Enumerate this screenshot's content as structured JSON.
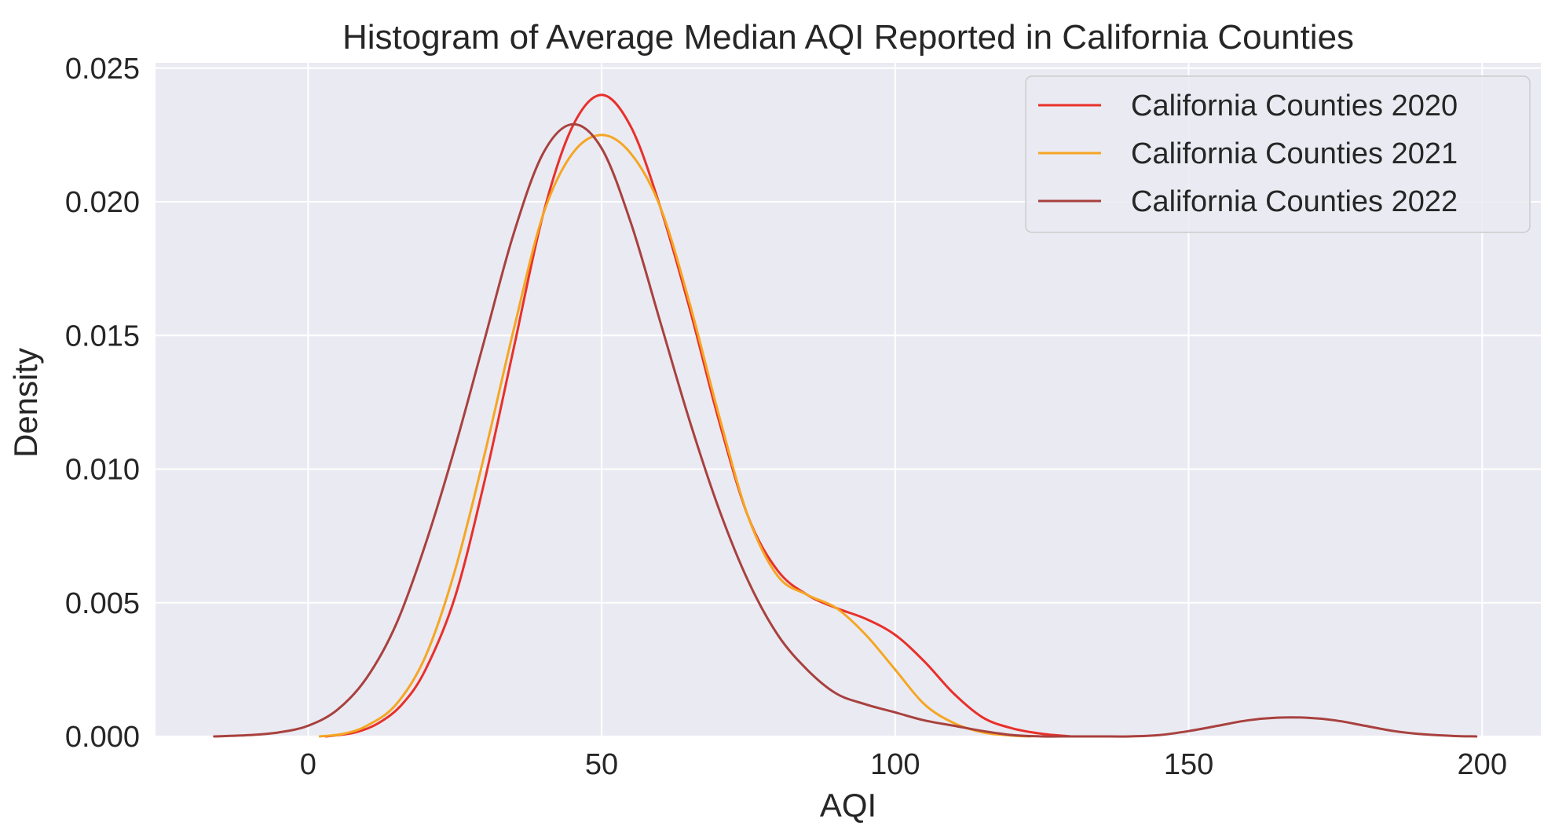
{
  "chart_data": {
    "type": "line",
    "title": "Histogram of Average Median AQI Reported in California Counties",
    "xlabel": "AQI",
    "ylabel": "Density",
    "xlim": [
      -26,
      210
    ],
    "ylim": [
      0,
      0.0252
    ],
    "x_ticks": [
      0,
      50,
      100,
      150,
      200
    ],
    "x_tick_labels": [
      "0",
      "50",
      "100",
      "150",
      "200"
    ],
    "y_ticks": [
      0.0,
      0.005,
      0.01,
      0.015,
      0.02,
      0.025
    ],
    "y_tick_labels": [
      "0.000",
      "0.005",
      "0.010",
      "0.015",
      "0.020",
      "0.025"
    ],
    "grid": true,
    "legend_position": "top-right",
    "series": [
      {
        "name": "California Counties 2020",
        "color": "#e8302a",
        "x": [
          3,
          8,
          12,
          16,
          20,
          25,
          30,
          35,
          40,
          45,
          50,
          55,
          60,
          65,
          70,
          75,
          80,
          85,
          90,
          95,
          100,
          105,
          110,
          115,
          120,
          125,
          130
        ],
        "y": [
          0.0,
          0.00015,
          0.0005,
          0.0012,
          0.0025,
          0.0052,
          0.0095,
          0.0145,
          0.0195,
          0.0228,
          0.024,
          0.0228,
          0.0198,
          0.016,
          0.0118,
          0.0082,
          0.0062,
          0.0053,
          0.0048,
          0.0044,
          0.0038,
          0.0028,
          0.0016,
          0.0007,
          0.0003,
          0.0001,
          0.0
        ]
      },
      {
        "name": "California Counties 2021",
        "color": "#f5a623",
        "x": [
          2,
          6,
          10,
          15,
          20,
          25,
          30,
          35,
          40,
          45,
          50,
          55,
          60,
          65,
          70,
          75,
          80,
          85,
          90,
          95,
          100,
          105,
          110,
          115,
          120,
          123
        ],
        "y": [
          0.0,
          0.0001,
          0.0004,
          0.0012,
          0.003,
          0.0062,
          0.0105,
          0.0152,
          0.0195,
          0.0218,
          0.0225,
          0.0218,
          0.0198,
          0.0162,
          0.012,
          0.0082,
          0.006,
          0.0053,
          0.0048,
          0.0038,
          0.0025,
          0.0012,
          0.0005,
          0.00015,
          3e-05,
          0.0
        ]
      },
      {
        "name": "California Counties 2022",
        "color": "#a8413e",
        "x": [
          -16,
          -10,
          -5,
          0,
          5,
          10,
          15,
          20,
          25,
          30,
          35,
          40,
          45,
          50,
          55,
          60,
          65,
          70,
          75,
          80,
          85,
          90,
          95,
          100,
          105,
          110,
          115,
          120,
          125,
          130,
          135,
          140,
          145,
          150,
          155,
          160,
          165,
          170,
          175,
          180,
          185,
          190,
          195,
          199
        ],
        "y": [
          0.0,
          5e-05,
          0.00015,
          0.0004,
          0.001,
          0.0022,
          0.0042,
          0.0072,
          0.0108,
          0.0148,
          0.0188,
          0.0218,
          0.0229,
          0.022,
          0.0192,
          0.0155,
          0.0118,
          0.0085,
          0.0058,
          0.0038,
          0.0025,
          0.0016,
          0.0012,
          0.0009,
          0.0006,
          0.0004,
          0.0002,
          5e-05,
          0.0,
          0.0,
          0.0,
          0.0,
          5e-05,
          0.0002,
          0.0004,
          0.0006,
          0.0007,
          0.0007,
          0.0006,
          0.0004,
          0.0002,
          8e-05,
          2e-05,
          0.0
        ]
      }
    ]
  }
}
